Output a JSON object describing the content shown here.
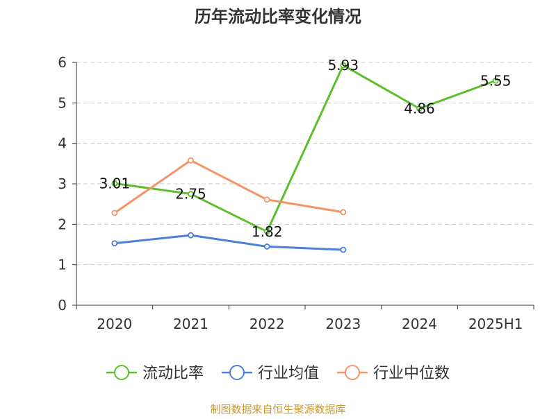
{
  "chart_data": {
    "type": "line",
    "title": "历年流动比率变化情况",
    "categories": [
      "2020",
      "2021",
      "2022",
      "2023",
      "2024",
      "2025H1"
    ],
    "ylim": [
      0,
      6
    ],
    "yticks": [
      0,
      1,
      2,
      3,
      4,
      5,
      6
    ],
    "grid": true,
    "legend_position": "bottom",
    "series": [
      {
        "name": "流动比率",
        "color": "#5cbf2a",
        "values": [
          3.01,
          2.75,
          1.82,
          5.93,
          4.86,
          5.55
        ],
        "labels": [
          "3.01",
          "2.75",
          "1.82",
          "5.93",
          "4.86",
          "5.55"
        ],
        "show_labels": true
      },
      {
        "name": "行业均值",
        "color": "#4d7fd6",
        "values": [
          1.53,
          1.73,
          1.45,
          1.37,
          null,
          null
        ],
        "show_labels": false
      },
      {
        "name": "行业中位数",
        "color": "#f49468",
        "values": [
          2.28,
          3.58,
          2.61,
          2.3,
          null,
          null
        ],
        "show_labels": false
      }
    ],
    "source": "制图数据来自恒生聚源数据库",
    "source_color": "#c99a2e"
  }
}
